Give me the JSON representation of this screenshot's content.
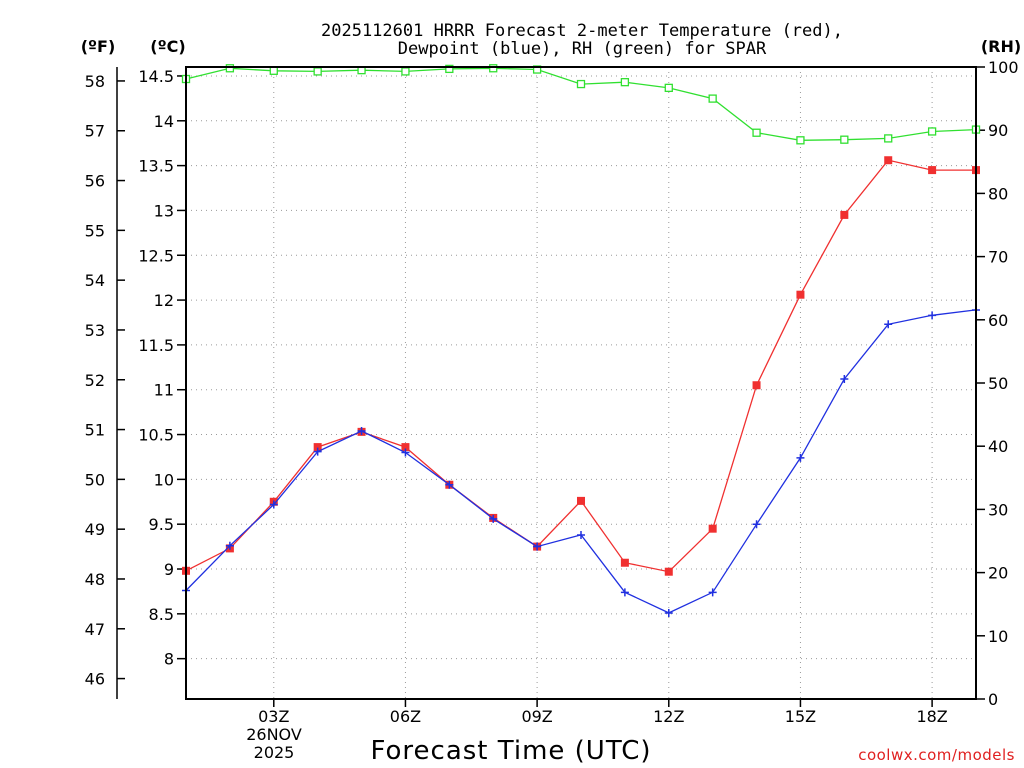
{
  "chart_data": {
    "type": "line",
    "title_line1": "2025112601 HRRR Forecast 2-meter Temperature (red),",
    "title_line2": "Dewpoint (blue), RH (green) for SPAR",
    "unit_f": "(ºF)",
    "unit_c": "(ºC)",
    "unit_rh": "(RH)",
    "xlabel": "Forecast Time (UTC)",
    "credit": "coolwx.com/models",
    "date_label_1": "26NOV",
    "date_label_2": "2025",
    "xlim": [
      1,
      19
    ],
    "ylim_c": [
      7.55,
      14.6
    ],
    "ylim_rh": [
      0,
      100
    ],
    "ylim_f": [
      45.59,
      58.28
    ],
    "x_ticks": [
      {
        "x": 3,
        "label": "03Z"
      },
      {
        "x": 6,
        "label": "06Z"
      },
      {
        "x": 9,
        "label": "09Z"
      },
      {
        "x": 12,
        "label": "12Z"
      },
      {
        "x": 15,
        "label": "15Z"
      },
      {
        "x": 18,
        "label": "18Z"
      }
    ],
    "c_ticks": [
      {
        "value": 8,
        "label": "8"
      },
      {
        "value": 8.5,
        "label": "8.5"
      },
      {
        "value": 9,
        "label": "9"
      },
      {
        "value": 9.5,
        "label": "9.5"
      },
      {
        "value": 10,
        "label": "10"
      },
      {
        "value": 10.5,
        "label": "10.5"
      },
      {
        "value": 11,
        "label": "11"
      },
      {
        "value": 11.5,
        "label": "11.5"
      },
      {
        "value": 12,
        "label": "12"
      },
      {
        "value": 12.5,
        "label": "12.5"
      },
      {
        "value": 13,
        "label": "13"
      },
      {
        "value": 13.5,
        "label": "13.5"
      },
      {
        "value": 14,
        "label": "14"
      },
      {
        "value": 14.5,
        "label": "14.5"
      }
    ],
    "f_ticks": [
      {
        "value": 46,
        "label": "46"
      },
      {
        "value": 47,
        "label": "47"
      },
      {
        "value": 48,
        "label": "48"
      },
      {
        "value": 49,
        "label": "49"
      },
      {
        "value": 50,
        "label": "50"
      },
      {
        "value": 51,
        "label": "51"
      },
      {
        "value": 52,
        "label": "52"
      },
      {
        "value": 53,
        "label": "53"
      },
      {
        "value": 54,
        "label": "54"
      },
      {
        "value": 55,
        "label": "55"
      },
      {
        "value": 56,
        "label": "56"
      },
      {
        "value": 57,
        "label": "57"
      },
      {
        "value": 58,
        "label": "58"
      }
    ],
    "rh_ticks": [
      {
        "value": 0,
        "label": "0"
      },
      {
        "value": 10,
        "label": "10"
      },
      {
        "value": 20,
        "label": "20"
      },
      {
        "value": 30,
        "label": "30"
      },
      {
        "value": 40,
        "label": "40"
      },
      {
        "value": 50,
        "label": "50"
      },
      {
        "value": 60,
        "label": "60"
      },
      {
        "value": 70,
        "label": "70"
      },
      {
        "value": 80,
        "label": "80"
      },
      {
        "value": 90,
        "label": "90"
      },
      {
        "value": 100,
        "label": "100"
      }
    ],
    "x": [
      1,
      2,
      3,
      4,
      5,
      6,
      7,
      8,
      9,
      10,
      11,
      12,
      13,
      14,
      15,
      16,
      17,
      18,
      19
    ],
    "series": [
      {
        "name": "Temperature",
        "axis": "c",
        "color": "#f03030",
        "marker": "filled-square",
        "values": [
          8.98,
          9.23,
          9.75,
          10.36,
          10.53,
          10.36,
          9.94,
          9.57,
          9.25,
          9.76,
          9.07,
          8.97,
          9.45,
          11.05,
          12.06,
          12.95,
          13.56,
          13.45,
          13.45
        ]
      },
      {
        "name": "Dewpoint",
        "axis": "c",
        "color": "#2030e0",
        "marker": "plus",
        "values": [
          8.76,
          9.26,
          9.72,
          10.31,
          10.54,
          10.3,
          9.94,
          9.56,
          9.25,
          9.38,
          8.74,
          8.51,
          8.74,
          9.5,
          10.24,
          11.12,
          11.73,
          11.83,
          11.89
        ]
      },
      {
        "name": "RH",
        "axis": "rh",
        "color": "#30e030",
        "marker": "open-square",
        "values": [
          98.1,
          99.8,
          99.4,
          99.3,
          99.5,
          99.3,
          99.7,
          99.8,
          99.6,
          97.3,
          97.6,
          96.7,
          95.0,
          89.6,
          88.4,
          88.5,
          88.7,
          89.8,
          90.1
        ]
      }
    ]
  }
}
